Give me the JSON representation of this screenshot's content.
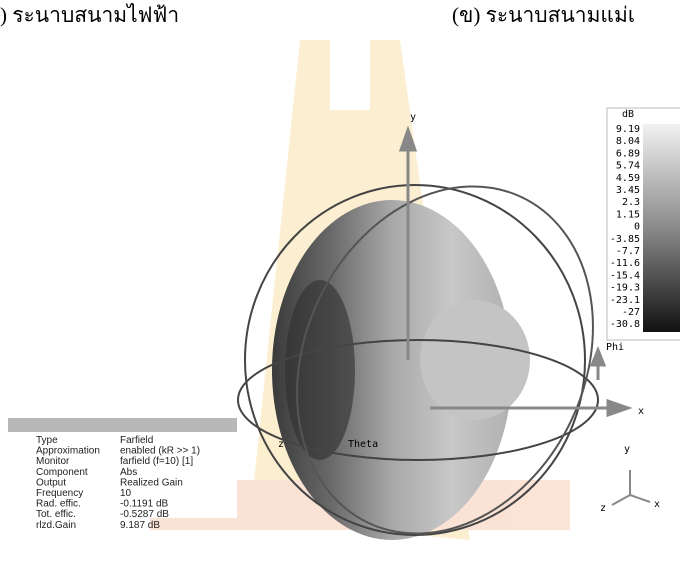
{
  "captions": {
    "left": ") ระนาบสนามไฟฟ้า",
    "right": "(ข) ระนาบสนามแม่เ"
  },
  "colorbar": {
    "unit": "dB",
    "labels": [
      "9.19",
      "8.04",
      "6.89",
      "5.74",
      "4.59",
      "3.45",
      "2.3",
      "1.15",
      "0",
      "-3.85",
      "-7.7",
      "-11.6",
      "-15.4",
      "-19.3",
      "-23.1",
      "-27",
      "-30.8"
    ]
  },
  "axes": {
    "y": "y",
    "x": "x",
    "z": "z",
    "phi": "Phi",
    "theta": "Theta"
  },
  "triad": {
    "y": "y",
    "x": "x",
    "z": "z"
  },
  "info": {
    "rows": [
      [
        "Type",
        "Farfield"
      ],
      [
        "Approximation",
        "enabled (kR >> 1)"
      ],
      [
        "Monitor",
        "farfield (f=10) [1]"
      ],
      [
        "Component",
        "Abs"
      ],
      [
        "Output",
        "Realized Gain"
      ],
      [
        "Frequency",
        "10"
      ],
      [
        "Rad. effic.",
        "-0.1191 dB"
      ],
      [
        "Tot. effic.",
        "-0.5287 dB"
      ],
      [
        "rlzd.Gain",
        "9.187 dB"
      ]
    ]
  }
}
